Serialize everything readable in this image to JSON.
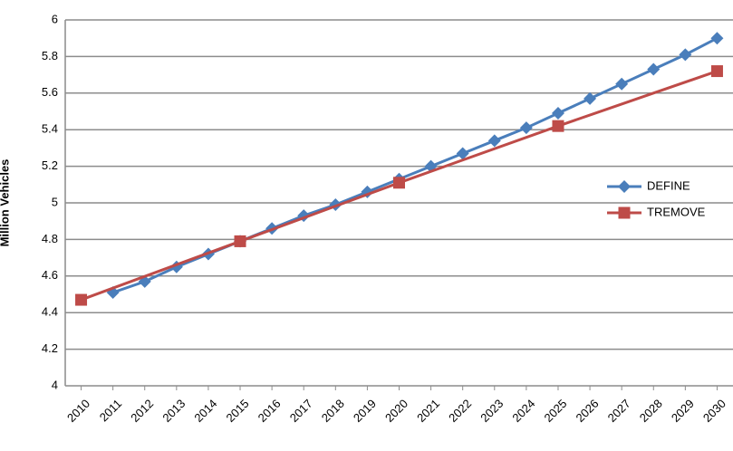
{
  "chart_data": {
    "type": "line",
    "y_label": "Million Vehicles",
    "xlim": [
      2009.5,
      2030.5
    ],
    "xticks": [
      2010,
      2011,
      2012,
      2013,
      2014,
      2015,
      2016,
      2017,
      2018,
      2019,
      2020,
      2021,
      2022,
      2023,
      2024,
      2025,
      2026,
      2027,
      2028,
      2029,
      2030
    ],
    "ylim": [
      4,
      6
    ],
    "yticks": [
      4,
      4.2,
      4.4,
      4.6,
      4.8,
      5,
      5.2,
      5.4,
      5.6,
      5.8,
      6
    ],
    "grid": true,
    "legend": "right",
    "series": [
      {
        "name": "DEFINE",
        "color": "#4a7ebb",
        "marker": "diamond",
        "x": [
          2011,
          2012,
          2013,
          2014,
          2015,
          2016,
          2017,
          2018,
          2019,
          2020,
          2021,
          2022,
          2023,
          2024,
          2025,
          2026,
          2027,
          2028,
          2029,
          2030
        ],
        "values": [
          4.51,
          4.57,
          4.65,
          4.72,
          4.79,
          4.86,
          4.93,
          4.99,
          5.06,
          5.13,
          5.2,
          5.27,
          5.34,
          5.41,
          5.49,
          5.57,
          5.65,
          5.73,
          5.81,
          5.9
        ]
      },
      {
        "name": "TREMOVE",
        "color": "#be4b48",
        "marker": "square",
        "x": [
          2010,
          2015,
          2020,
          2025,
          2030
        ],
        "values": [
          4.47,
          4.79,
          5.11,
          5.42,
          5.72
        ]
      }
    ]
  }
}
